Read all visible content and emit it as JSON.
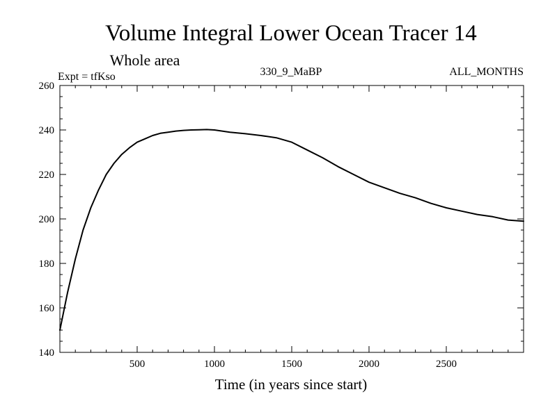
{
  "chart_data": {
    "type": "line",
    "title": "Volume Integral Lower Ocean Tracer 14",
    "subtitle": "Whole area",
    "experiment_label": "Expt = tfKso",
    "period_label": "330_9_MaBP",
    "months_label": "ALL_MONTHS",
    "xlabel": "Time (in years since start)",
    "ylabel": "",
    "xlim": [
      0,
      3000
    ],
    "ylim": [
      140,
      260
    ],
    "x_ticks": [
      500,
      1000,
      1500,
      2000,
      2500
    ],
    "y_ticks": [
      140,
      160,
      180,
      200,
      220,
      240,
      260
    ],
    "grid": false,
    "series": [
      {
        "name": "Lower Ocean Tracer 14",
        "color": "#000000",
        "x": [
          0,
          50,
          100,
          150,
          200,
          250,
          300,
          350,
          400,
          450,
          500,
          550,
          600,
          650,
          700,
          750,
          800,
          850,
          900,
          950,
          1000,
          1100,
          1200,
          1300,
          1400,
          1500,
          1600,
          1700,
          1800,
          1900,
          2000,
          2100,
          2200,
          2300,
          2400,
          2500,
          2600,
          2700,
          2800,
          2900,
          3000
        ],
        "y": [
          150,
          167,
          182,
          195,
          205,
          213,
          220,
          225,
          229,
          232,
          234.5,
          236,
          237.5,
          238.5,
          239,
          239.5,
          239.8,
          240,
          240.1,
          240.2,
          240,
          239,
          238.3,
          237.5,
          236.5,
          234.5,
          231,
          227.5,
          223.5,
          220,
          216.5,
          214,
          211.5,
          209.5,
          207,
          205,
          203.5,
          202,
          201,
          199.5,
          199
        ]
      }
    ]
  }
}
